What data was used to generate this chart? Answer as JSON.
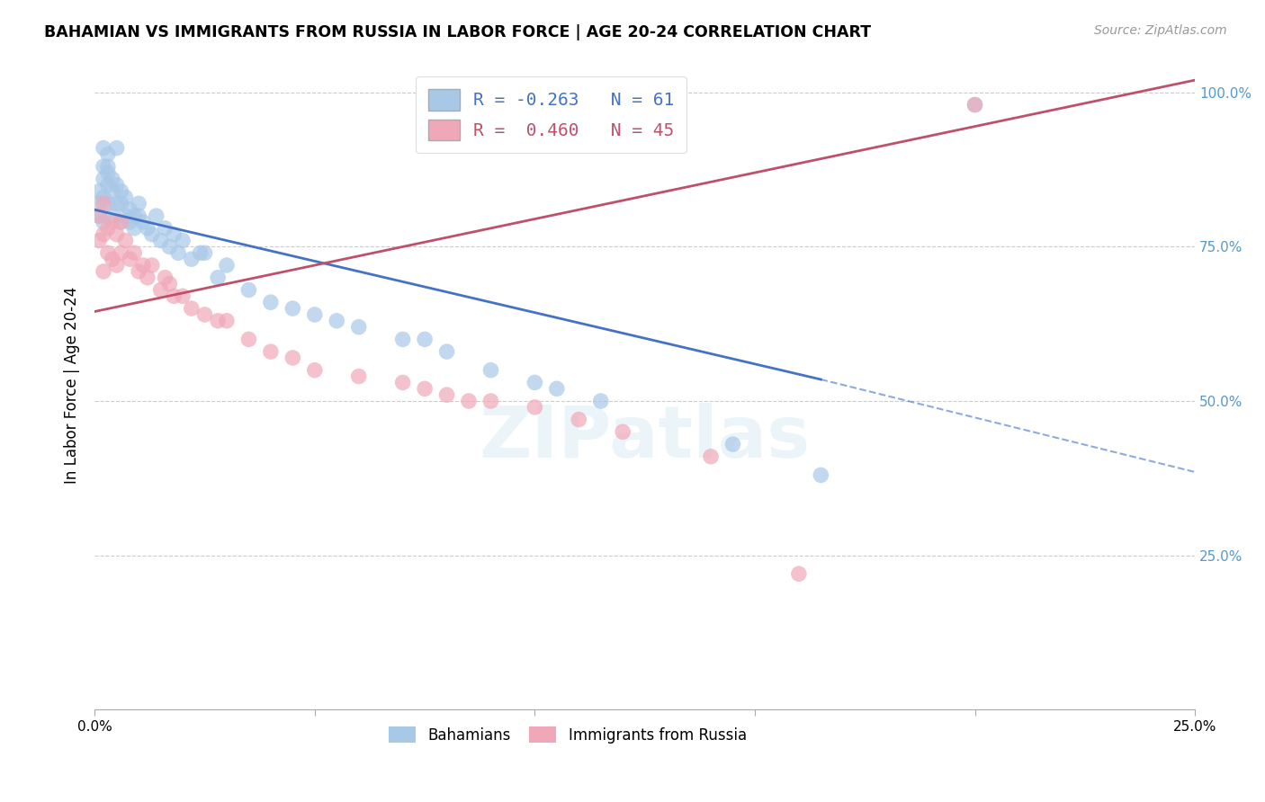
{
  "title": "BAHAMIAN VS IMMIGRANTS FROM RUSSIA IN LABOR FORCE | AGE 20-24 CORRELATION CHART",
  "source": "Source: ZipAtlas.com",
  "ylabel": "In Labor Force | Age 20-24",
  "xlim": [
    0.0,
    0.25
  ],
  "ylim": [
    0.0,
    1.05
  ],
  "watermark": "ZIPatlas",
  "blue_R": -0.263,
  "blue_N": 61,
  "pink_R": 0.46,
  "pink_N": 45,
  "blue_color": "#A8C8E8",
  "pink_color": "#F0A8B8",
  "blue_line_color": "#4472C4",
  "pink_line_color": "#C0506A",
  "background_color": "#ffffff",
  "grid_color": "#cccccc",
  "right_tick_color": "#5599CC",
  "blue_scatter_x": [
    0.001,
    0.001,
    0.001,
    0.002,
    0.002,
    0.002,
    0.002,
    0.002,
    0.003,
    0.003,
    0.003,
    0.003,
    0.003,
    0.004,
    0.004,
    0.004,
    0.005,
    0.005,
    0.005,
    0.006,
    0.006,
    0.006,
    0.007,
    0.007,
    0.008,
    0.008,
    0.009,
    0.009,
    0.01,
    0.01,
    0.011,
    0.012,
    0.013,
    0.014,
    0.015,
    0.016,
    0.017,
    0.018,
    0.019,
    0.02,
    0.022,
    0.024,
    0.025,
    0.028,
    0.03,
    0.035,
    0.04,
    0.045,
    0.05,
    0.055,
    0.06,
    0.07,
    0.075,
    0.08,
    0.09,
    0.1,
    0.105,
    0.115,
    0.145,
    0.165,
    0.2
  ],
  "blue_scatter_y": [
    0.82,
    0.84,
    0.8,
    0.86,
    0.83,
    0.79,
    0.91,
    0.88,
    0.87,
    0.85,
    0.82,
    0.88,
    0.9,
    0.86,
    0.84,
    0.8,
    0.85,
    0.82,
    0.91,
    0.82,
    0.84,
    0.79,
    0.8,
    0.83,
    0.81,
    0.79,
    0.8,
    0.78,
    0.8,
    0.82,
    0.79,
    0.78,
    0.77,
    0.8,
    0.76,
    0.78,
    0.75,
    0.77,
    0.74,
    0.76,
    0.73,
    0.74,
    0.74,
    0.7,
    0.72,
    0.68,
    0.66,
    0.65,
    0.64,
    0.63,
    0.62,
    0.6,
    0.6,
    0.58,
    0.55,
    0.53,
    0.52,
    0.5,
    0.43,
    0.38,
    0.98
  ],
  "pink_scatter_x": [
    0.001,
    0.001,
    0.002,
    0.002,
    0.002,
    0.003,
    0.003,
    0.004,
    0.004,
    0.005,
    0.005,
    0.006,
    0.006,
    0.007,
    0.008,
    0.009,
    0.01,
    0.011,
    0.012,
    0.013,
    0.015,
    0.016,
    0.017,
    0.018,
    0.02,
    0.022,
    0.025,
    0.028,
    0.03,
    0.035,
    0.04,
    0.045,
    0.05,
    0.06,
    0.07,
    0.075,
    0.08,
    0.085,
    0.09,
    0.1,
    0.11,
    0.12,
    0.14,
    0.16,
    0.2
  ],
  "pink_scatter_y": [
    0.76,
    0.8,
    0.77,
    0.82,
    0.71,
    0.78,
    0.74,
    0.79,
    0.73,
    0.77,
    0.72,
    0.79,
    0.74,
    0.76,
    0.73,
    0.74,
    0.71,
    0.72,
    0.7,
    0.72,
    0.68,
    0.7,
    0.69,
    0.67,
    0.67,
    0.65,
    0.64,
    0.63,
    0.63,
    0.6,
    0.58,
    0.57,
    0.55,
    0.54,
    0.53,
    0.52,
    0.51,
    0.5,
    0.5,
    0.49,
    0.47,
    0.45,
    0.41,
    0.22,
    0.98
  ]
}
